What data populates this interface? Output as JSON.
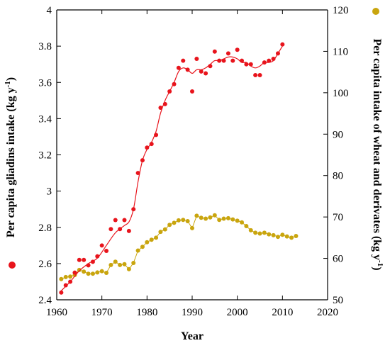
{
  "chart_data": {
    "type": "scatter",
    "xlabel": "Year",
    "ylabel_left_main": "Per capita gliadins intake (kg y",
    "ylabel_left_sup": "-1",
    "ylabel_left_end": ")",
    "ylabel_right_main": "Per capita intake of wheat and derivates (kg y",
    "ylabel_right_sup": "-1",
    "ylabel_right_end": ")",
    "xlim": [
      1960,
      2020
    ],
    "ylim_left": [
      2.4,
      4.0
    ],
    "ylim_right": [
      50,
      120
    ],
    "x_ticks": [
      "1960",
      "1970",
      "1980",
      "1990",
      "2000",
      "2010",
      "2020"
    ],
    "y_left_ticks": [
      "2.4",
      "2.6",
      "2.8",
      "3",
      "3.2",
      "3.4",
      "3.6",
      "3.8",
      "4"
    ],
    "y_right_ticks": [
      "50",
      "60",
      "70",
      "80",
      "90",
      "100",
      "110",
      "120"
    ],
    "colors": {
      "gliadins": "#e8141c",
      "wheat": "#c9a50e"
    },
    "series": [
      {
        "name": "gliadins",
        "axis": "left",
        "points": [
          [
            1961,
            2.44
          ],
          [
            1962,
            2.48
          ],
          [
            1963,
            2.5
          ],
          [
            1964,
            2.55
          ],
          [
            1965,
            2.62
          ],
          [
            1966,
            2.62
          ],
          [
            1967,
            2.59
          ],
          [
            1968,
            2.61
          ],
          [
            1969,
            2.64
          ],
          [
            1970,
            2.7
          ],
          [
            1971,
            2.67
          ],
          [
            1972,
            2.79
          ],
          [
            1973,
            2.84
          ],
          [
            1974,
            2.79
          ],
          [
            1975,
            2.84
          ],
          [
            1976,
            2.78
          ],
          [
            1977,
            2.9
          ],
          [
            1978,
            3.1
          ],
          [
            1979,
            3.17
          ],
          [
            1980,
            3.24
          ],
          [
            1981,
            3.26
          ],
          [
            1982,
            3.31
          ],
          [
            1983,
            3.46
          ],
          [
            1984,
            3.48
          ],
          [
            1985,
            3.55
          ],
          [
            1986,
            3.59
          ],
          [
            1987,
            3.68
          ],
          [
            1988,
            3.72
          ],
          [
            1989,
            3.67
          ],
          [
            1990,
            3.55
          ],
          [
            1991,
            3.73
          ],
          [
            1992,
            3.66
          ],
          [
            1993,
            3.65
          ],
          [
            1994,
            3.69
          ],
          [
            1995,
            3.77
          ],
          [
            1996,
            3.72
          ],
          [
            1997,
            3.72
          ],
          [
            1998,
            3.76
          ],
          [
            1999,
            3.72
          ],
          [
            2000,
            3.78
          ],
          [
            2001,
            3.72
          ],
          [
            2002,
            3.7
          ],
          [
            2003,
            3.7
          ],
          [
            2004,
            3.64
          ],
          [
            2005,
            3.64
          ],
          [
            2006,
            3.71
          ],
          [
            2007,
            3.72
          ],
          [
            2008,
            3.73
          ],
          [
            2009,
            3.76
          ],
          [
            2010,
            3.81
          ]
        ],
        "trend": [
          [
            1961,
            2.45
          ],
          [
            1963,
            2.5
          ],
          [
            1965,
            2.56
          ],
          [
            1967,
            2.6
          ],
          [
            1969,
            2.63
          ],
          [
            1971,
            2.7
          ],
          [
            1973,
            2.77
          ],
          [
            1975,
            2.81
          ],
          [
            1976,
            2.83
          ],
          [
            1977,
            2.9
          ],
          [
            1978,
            3.05
          ],
          [
            1979,
            3.17
          ],
          [
            1980,
            3.23
          ],
          [
            1981,
            3.27
          ],
          [
            1982,
            3.33
          ],
          [
            1983,
            3.43
          ],
          [
            1984,
            3.5
          ],
          [
            1985,
            3.55
          ],
          [
            1986,
            3.6
          ],
          [
            1987,
            3.66
          ],
          [
            1988,
            3.68
          ],
          [
            1989,
            3.67
          ],
          [
            1990,
            3.65
          ],
          [
            1991,
            3.67
          ],
          [
            1992,
            3.67
          ],
          [
            1993,
            3.68
          ],
          [
            1994,
            3.7
          ],
          [
            1995,
            3.72
          ],
          [
            1996,
            3.72
          ],
          [
            1997,
            3.73
          ],
          [
            1998,
            3.74
          ],
          [
            1999,
            3.74
          ],
          [
            2000,
            3.73
          ],
          [
            2001,
            3.71
          ],
          [
            2002,
            3.71
          ],
          [
            2003,
            3.69
          ],
          [
            2004,
            3.68
          ],
          [
            2005,
            3.69
          ],
          [
            2006,
            3.71
          ],
          [
            2007,
            3.71
          ],
          [
            2008,
            3.72
          ],
          [
            2009,
            3.76
          ],
          [
            2010,
            3.8
          ]
        ]
      },
      {
        "name": "wheat",
        "axis": "right",
        "points": [
          [
            1961,
            55.0
          ],
          [
            1962,
            55.5
          ],
          [
            1963,
            55.6
          ],
          [
            1964,
            56.0
          ],
          [
            1965,
            57.2
          ],
          [
            1966,
            56.8
          ],
          [
            1967,
            56.3
          ],
          [
            1968,
            56.3
          ],
          [
            1969,
            56.6
          ],
          [
            1970,
            56.9
          ],
          [
            1971,
            56.5
          ],
          [
            1972,
            58.4
          ],
          [
            1973,
            59.2
          ],
          [
            1974,
            58.4
          ],
          [
            1975,
            58.6
          ],
          [
            1976,
            57.4
          ],
          [
            1977,
            58.9
          ],
          [
            1978,
            61.9
          ],
          [
            1979,
            62.8
          ],
          [
            1980,
            63.9
          ],
          [
            1981,
            64.5
          ],
          [
            1982,
            65.0
          ],
          [
            1983,
            66.4
          ],
          [
            1984,
            67.0
          ],
          [
            1985,
            68.1
          ],
          [
            1986,
            68.6
          ],
          [
            1987,
            69.2
          ],
          [
            1988,
            69.3
          ],
          [
            1989,
            69.0
          ],
          [
            1990,
            67.3
          ],
          [
            1991,
            70.3
          ],
          [
            1992,
            69.8
          ],
          [
            1993,
            69.6
          ],
          [
            1994,
            69.9
          ],
          [
            1995,
            70.4
          ],
          [
            1996,
            69.3
          ],
          [
            1997,
            69.6
          ],
          [
            1998,
            69.7
          ],
          [
            1999,
            69.4
          ],
          [
            2000,
            69.1
          ],
          [
            2001,
            68.7
          ],
          [
            2002,
            67.8
          ],
          [
            2003,
            66.8
          ],
          [
            2004,
            66.2
          ],
          [
            2005,
            66.0
          ],
          [
            2006,
            66.2
          ],
          [
            2007,
            65.8
          ],
          [
            2008,
            65.6
          ],
          [
            2009,
            65.2
          ],
          [
            2010,
            65.7
          ],
          [
            2011,
            65.3
          ],
          [
            2012,
            65.0
          ],
          [
            2013,
            65.4
          ]
        ]
      }
    ]
  }
}
